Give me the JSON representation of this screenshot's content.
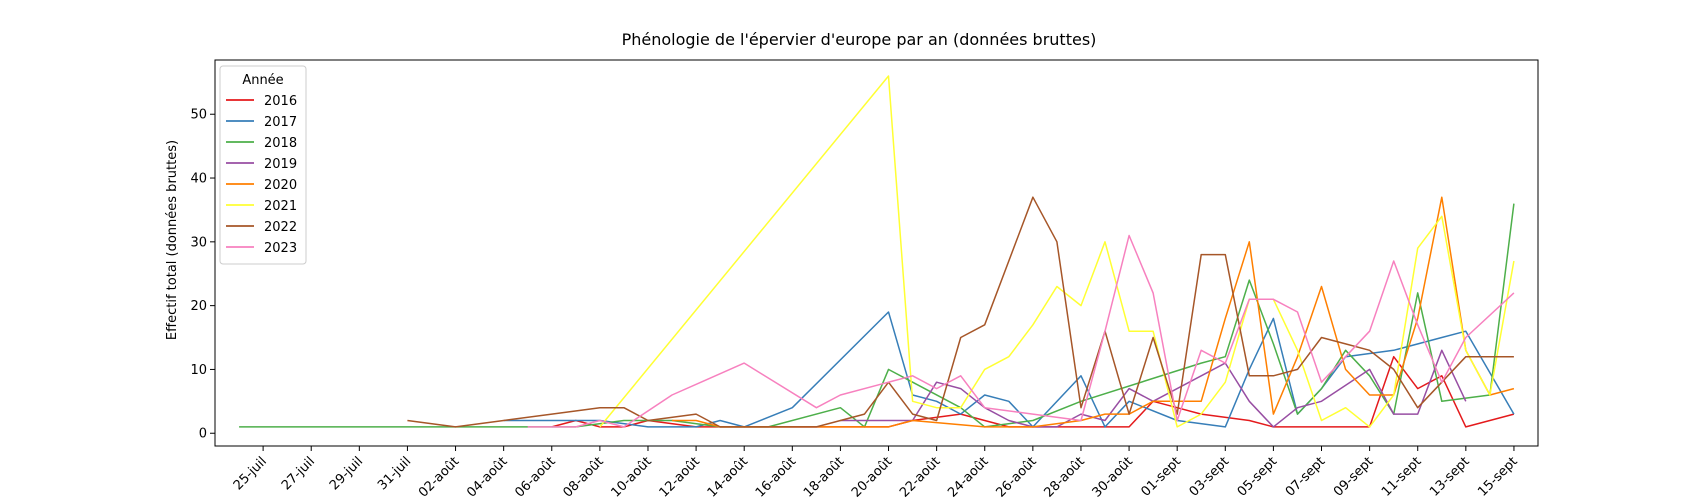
{
  "chart_data": {
    "type": "line",
    "title": "Phénologie de l'épervier d'europe par an (données bruttes)",
    "xlabel": "",
    "ylabel": "Effectif total (données bruttes)",
    "xlim": [
      "2024-07-23",
      "2024-09-16"
    ],
    "ylim": [
      -2,
      58.5
    ],
    "yticks": [
      0,
      10,
      20,
      30,
      40,
      50
    ],
    "xticks": [
      {
        "date": "2024-07-25",
        "label": "25-juil"
      },
      {
        "date": "2024-07-27",
        "label": "27-juil"
      },
      {
        "date": "2024-07-29",
        "label": "29-juil"
      },
      {
        "date": "2024-07-31",
        "label": "31-juil"
      },
      {
        "date": "2024-08-02",
        "label": "02-août"
      },
      {
        "date": "2024-08-04",
        "label": "04-août"
      },
      {
        "date": "2024-08-06",
        "label": "06-août"
      },
      {
        "date": "2024-08-08",
        "label": "08-août"
      },
      {
        "date": "2024-08-10",
        "label": "10-août"
      },
      {
        "date": "2024-08-12",
        "label": "12-août"
      },
      {
        "date": "2024-08-14",
        "label": "14-août"
      },
      {
        "date": "2024-08-16",
        "label": "16-août"
      },
      {
        "date": "2024-08-18",
        "label": "18-août"
      },
      {
        "date": "2024-08-20",
        "label": "20-août"
      },
      {
        "date": "2024-08-22",
        "label": "22-août"
      },
      {
        "date": "2024-08-24",
        "label": "24-août"
      },
      {
        "date": "2024-08-26",
        "label": "26-août"
      },
      {
        "date": "2024-08-28",
        "label": "28-août"
      },
      {
        "date": "2024-08-30",
        "label": "30-août"
      },
      {
        "date": "2024-09-01",
        "label": "01-sept"
      },
      {
        "date": "2024-09-03",
        "label": "03-sept"
      },
      {
        "date": "2024-09-05",
        "label": "05-sept"
      },
      {
        "date": "2024-09-07",
        "label": "07-sept"
      },
      {
        "date": "2024-09-09",
        "label": "09-sept"
      },
      {
        "date": "2024-09-11",
        "label": "11-sept"
      },
      {
        "date": "2024-09-13",
        "label": "13-sept"
      },
      {
        "date": "2024-09-15",
        "label": "15-sept"
      }
    ],
    "legend": {
      "title": "Année",
      "position": "top-left"
    },
    "grid": false,
    "series": [
      {
        "name": "2016",
        "color": "#e41a1c",
        "points": [
          [
            "2024-08-06",
            1
          ],
          [
            "2024-08-07",
            2
          ],
          [
            "2024-08-08",
            1
          ],
          [
            "2024-08-09",
            1
          ],
          [
            "2024-08-10",
            2
          ],
          [
            "2024-08-12",
            1
          ],
          [
            "2024-08-14",
            1
          ],
          [
            "2024-08-16",
            1
          ],
          [
            "2024-08-18",
            1
          ],
          [
            "2024-08-20",
            1
          ],
          [
            "2024-08-21",
            2
          ],
          [
            "2024-08-23",
            3
          ],
          [
            "2024-08-24",
            2
          ],
          [
            "2024-08-25",
            1
          ],
          [
            "2024-08-26",
            1
          ],
          [
            "2024-08-28",
            1
          ],
          [
            "2024-08-30",
            1
          ],
          [
            "2024-08-31",
            5
          ],
          [
            "2024-09-01",
            4
          ],
          [
            "2024-09-02",
            3
          ],
          [
            "2024-09-04",
            2
          ],
          [
            "2024-09-05",
            1
          ],
          [
            "2024-09-06",
            1
          ],
          [
            "2024-09-08",
            1
          ],
          [
            "2024-09-09",
            1
          ],
          [
            "2024-09-10",
            12
          ],
          [
            "2024-09-11",
            7
          ],
          [
            "2024-09-12",
            9
          ],
          [
            "2024-09-13",
            1
          ],
          [
            "2024-09-15",
            3
          ]
        ]
      },
      {
        "name": "2017",
        "color": "#377eb8",
        "points": [
          [
            "2024-08-04",
            2
          ],
          [
            "2024-08-06",
            2
          ],
          [
            "2024-08-08",
            2
          ],
          [
            "2024-08-10",
            1
          ],
          [
            "2024-08-12",
            1
          ],
          [
            "2024-08-13",
            2
          ],
          [
            "2024-08-14",
            1
          ],
          [
            "2024-08-16",
            4
          ],
          [
            "2024-08-20",
            19
          ],
          [
            "2024-08-21",
            6
          ],
          [
            "2024-08-22",
            5
          ],
          [
            "2024-08-23",
            3
          ],
          [
            "2024-08-24",
            6
          ],
          [
            "2024-08-25",
            5
          ],
          [
            "2024-08-26",
            1
          ],
          [
            "2024-08-28",
            9
          ],
          [
            "2024-08-29",
            1
          ],
          [
            "2024-08-30",
            5
          ],
          [
            "2024-09-01",
            2
          ],
          [
            "2024-09-03",
            1
          ],
          [
            "2024-09-04",
            10
          ],
          [
            "2024-09-05",
            18
          ],
          [
            "2024-09-06",
            3
          ],
          [
            "2024-09-07",
            7
          ],
          [
            "2024-09-08",
            12
          ],
          [
            "2024-09-10",
            13
          ],
          [
            "2024-09-12",
            15
          ],
          [
            "2024-09-13",
            16
          ],
          [
            "2024-09-15",
            3
          ]
        ]
      },
      {
        "name": "2018",
        "color": "#4daf4a",
        "points": [
          [
            "2024-07-24",
            1
          ],
          [
            "2024-07-26",
            1
          ],
          [
            "2024-07-28",
            1
          ],
          [
            "2024-07-30",
            1
          ],
          [
            "2024-08-01",
            1
          ],
          [
            "2024-08-03",
            1
          ],
          [
            "2024-08-05",
            1
          ],
          [
            "2024-08-07",
            1
          ],
          [
            "2024-08-09",
            2
          ],
          [
            "2024-08-11",
            2
          ],
          [
            "2024-08-13",
            1
          ],
          [
            "2024-08-15",
            1
          ],
          [
            "2024-08-18",
            4
          ],
          [
            "2024-08-19",
            1
          ],
          [
            "2024-08-20",
            10
          ],
          [
            "2024-08-21",
            8
          ],
          [
            "2024-08-23",
            4
          ],
          [
            "2024-08-24",
            1
          ],
          [
            "2024-08-26",
            2
          ],
          [
            "2024-08-28",
            5
          ],
          [
            "2024-09-02",
            11
          ],
          [
            "2024-09-03",
            12
          ],
          [
            "2024-09-04",
            24
          ],
          [
            "2024-09-05",
            14
          ],
          [
            "2024-09-06",
            3
          ],
          [
            "2024-09-07",
            7
          ],
          [
            "2024-09-08",
            13
          ],
          [
            "2024-09-09",
            9
          ],
          [
            "2024-09-10",
            3
          ],
          [
            "2024-09-11",
            22
          ],
          [
            "2024-09-12",
            5
          ],
          [
            "2024-09-14",
            6
          ],
          [
            "2024-09-15",
            36
          ]
        ]
      },
      {
        "name": "2019",
        "color": "#984ea3",
        "points": [
          [
            "2024-08-18",
            2
          ],
          [
            "2024-08-20",
            2
          ],
          [
            "2024-08-21",
            2
          ],
          [
            "2024-08-22",
            8
          ],
          [
            "2024-08-23",
            7
          ],
          [
            "2024-08-24",
            4
          ],
          [
            "2024-08-25",
            2
          ],
          [
            "2024-08-26",
            1
          ],
          [
            "2024-08-27",
            1
          ],
          [
            "2024-08-28",
            3
          ],
          [
            "2024-08-29",
            2
          ],
          [
            "2024-08-30",
            7
          ],
          [
            "2024-08-31",
            5
          ],
          [
            "2024-09-03",
            11
          ],
          [
            "2024-09-04",
            5
          ],
          [
            "2024-09-05",
            1
          ],
          [
            "2024-09-06",
            4
          ],
          [
            "2024-09-07",
            5
          ],
          [
            "2024-09-09",
            10
          ],
          [
            "2024-09-10",
            3
          ],
          [
            "2024-09-11",
            3
          ],
          [
            "2024-09-12",
            13
          ],
          [
            "2024-09-13",
            5
          ]
        ]
      },
      {
        "name": "2020",
        "color": "#ff7f00",
        "points": [
          [
            "2024-08-11",
            2
          ],
          [
            "2024-08-12",
            2
          ],
          [
            "2024-08-13",
            1
          ],
          [
            "2024-08-15",
            1
          ],
          [
            "2024-08-17",
            1
          ],
          [
            "2024-08-19",
            1
          ],
          [
            "2024-08-20",
            1
          ],
          [
            "2024-08-21",
            2
          ],
          [
            "2024-08-24",
            1
          ],
          [
            "2024-08-26",
            1
          ],
          [
            "2024-08-28",
            2
          ],
          [
            "2024-08-29",
            3
          ],
          [
            "2024-08-30",
            3
          ],
          [
            "2024-08-31",
            5
          ],
          [
            "2024-09-02",
            5
          ],
          [
            "2024-09-03",
            18
          ],
          [
            "2024-09-04",
            30
          ],
          [
            "2024-09-05",
            3
          ],
          [
            "2024-09-06",
            12
          ],
          [
            "2024-09-07",
            23
          ],
          [
            "2024-09-08",
            10
          ],
          [
            "2024-09-09",
            6
          ],
          [
            "2024-09-10",
            6
          ],
          [
            "2024-09-11",
            18
          ],
          [
            "2024-09-12",
            37
          ],
          [
            "2024-09-13",
            13
          ],
          [
            "2024-09-14",
            6
          ],
          [
            "2024-09-15",
            7
          ]
        ]
      },
      {
        "name": "2021",
        "color": "#ffff33",
        "points": [
          [
            "2024-08-08",
            1
          ],
          [
            "2024-08-20",
            56
          ],
          [
            "2024-08-21",
            5
          ],
          [
            "2024-08-22",
            4
          ],
          [
            "2024-08-23",
            4
          ],
          [
            "2024-08-24",
            10
          ],
          [
            "2024-08-25",
            12
          ],
          [
            "2024-08-26",
            17
          ],
          [
            "2024-08-27",
            23
          ],
          [
            "2024-08-28",
            20
          ],
          [
            "2024-08-29",
            30
          ],
          [
            "2024-08-30",
            16
          ],
          [
            "2024-08-31",
            16
          ],
          [
            "2024-09-01",
            1
          ],
          [
            "2024-09-02",
            3
          ],
          [
            "2024-09-03",
            8
          ],
          [
            "2024-09-04",
            21
          ],
          [
            "2024-09-05",
            21
          ],
          [
            "2024-09-06",
            13
          ],
          [
            "2024-09-07",
            2
          ],
          [
            "2024-09-08",
            4
          ],
          [
            "2024-09-09",
            1
          ],
          [
            "2024-09-10",
            6
          ],
          [
            "2024-09-11",
            29
          ],
          [
            "2024-09-12",
            34
          ],
          [
            "2024-09-13",
            13
          ],
          [
            "2024-09-14",
            6
          ],
          [
            "2024-09-15",
            27
          ]
        ]
      },
      {
        "name": "2022",
        "color": "#a65628",
        "points": [
          [
            "2024-07-31",
            2
          ],
          [
            "2024-08-02",
            1
          ],
          [
            "2024-08-04",
            2
          ],
          [
            "2024-08-06",
            3
          ],
          [
            "2024-08-08",
            4
          ],
          [
            "2024-08-09",
            4
          ],
          [
            "2024-08-10",
            2
          ],
          [
            "2024-08-12",
            3
          ],
          [
            "2024-08-13",
            1
          ],
          [
            "2024-08-15",
            1
          ],
          [
            "2024-08-17",
            1
          ],
          [
            "2024-08-19",
            3
          ],
          [
            "2024-08-20",
            8
          ],
          [
            "2024-08-21",
            3
          ],
          [
            "2024-08-22",
            2
          ],
          [
            "2024-08-23",
            15
          ],
          [
            "2024-08-24",
            17
          ],
          [
            "2024-08-26",
            37
          ],
          [
            "2024-08-27",
            30
          ],
          [
            "2024-08-28",
            4
          ],
          [
            "2024-08-29",
            16
          ],
          [
            "2024-08-30",
            3
          ],
          [
            "2024-08-31",
            15
          ],
          [
            "2024-09-01",
            3
          ],
          [
            "2024-09-02",
            28
          ],
          [
            "2024-09-03",
            28
          ],
          [
            "2024-09-04",
            9
          ],
          [
            "2024-09-05",
            9
          ],
          [
            "2024-09-06",
            10
          ],
          [
            "2024-09-07",
            15
          ],
          [
            "2024-09-08",
            14
          ],
          [
            "2024-09-09",
            13
          ],
          [
            "2024-09-10",
            10
          ],
          [
            "2024-09-11",
            4
          ],
          [
            "2024-09-12",
            8
          ],
          [
            "2024-09-13",
            12
          ],
          [
            "2024-09-15",
            12
          ]
        ]
      },
      {
        "name": "2023",
        "color": "#f781bf",
        "points": [
          [
            "2024-08-05",
            1
          ],
          [
            "2024-08-07",
            1
          ],
          [
            "2024-08-08",
            2
          ],
          [
            "2024-08-09",
            1
          ],
          [
            "2024-08-11",
            6
          ],
          [
            "2024-08-14",
            11
          ],
          [
            "2024-08-17",
            4
          ],
          [
            "2024-08-18",
            6
          ],
          [
            "2024-08-20",
            8
          ],
          [
            "2024-08-21",
            9
          ],
          [
            "2024-08-22",
            7
          ],
          [
            "2024-08-23",
            9
          ],
          [
            "2024-08-24",
            4
          ],
          [
            "2024-08-26",
            3
          ],
          [
            "2024-08-28",
            2
          ],
          [
            "2024-08-29",
            16
          ],
          [
            "2024-08-30",
            31
          ],
          [
            "2024-08-31",
            22
          ],
          [
            "2024-09-01",
            2
          ],
          [
            "2024-09-02",
            13
          ],
          [
            "2024-09-03",
            11
          ],
          [
            "2024-09-04",
            21
          ],
          [
            "2024-09-05",
            21
          ],
          [
            "2024-09-06",
            19
          ],
          [
            "2024-09-07",
            8
          ],
          [
            "2024-09-08",
            12
          ],
          [
            "2024-09-09",
            16
          ],
          [
            "2024-09-10",
            27
          ],
          [
            "2024-09-11",
            17
          ],
          [
            "2024-09-12",
            8
          ],
          [
            "2024-09-13",
            15
          ],
          [
            "2024-09-15",
            22
          ]
        ]
      }
    ]
  }
}
